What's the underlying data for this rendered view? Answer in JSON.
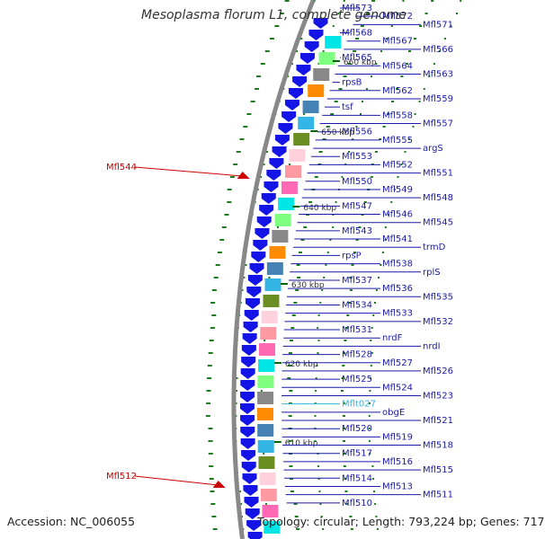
{
  "header": {
    "title": "Mesoplasma florum L1, complete genome"
  },
  "footer": {
    "accession": "Accession: NC_006055",
    "topology": "Topology: circular; Length: 793,224 bp; Genes: 717"
  },
  "colors": {
    "gene_blue": "#1414e6",
    "label_blue": "#1a1aa8",
    "label_red": "#cc0000",
    "trna_cyan": "#33b5e5",
    "backbone": "#888888",
    "gc_green": "#1e7a1e"
  },
  "ruler_ticks": [
    {
      "label": "660 kbp"
    },
    {
      "label": "650 kbp"
    },
    {
      "label": "640 kbp"
    },
    {
      "label": "630 kbp"
    },
    {
      "label": "620 kbp"
    },
    {
      "label": "610 kbp"
    }
  ],
  "gene_labels": {
    "right": [
      "Mfl573",
      "Mfl572",
      "Mfl571",
      "Mfl568",
      "Mfl567",
      "Mfl566",
      "Mfl565",
      "Mfl564",
      "Mfl563",
      "rpsB",
      "Mfl562",
      "Mfl559",
      "tsf",
      "Mfl558",
      "Mfl557",
      "Mfl556",
      "Mfl555",
      "argS",
      "Mfl553",
      "Mfl552",
      "Mfl551",
      "Mfl550",
      "Mfl549",
      "Mfl548",
      "Mfl547",
      "Mfl546",
      "Mfl545",
      "Mfl543",
      "Mfl541",
      "trmD",
      "rpsP",
      "Mfl538",
      "rplS",
      "Mfl537",
      "Mfl536",
      "Mfl535",
      "Mfl534",
      "Mfl533",
      "Mfl532",
      "Mfl531",
      "nrdF",
      "nrdI",
      "Mfl528",
      "Mfl527",
      "Mfl526",
      "Mfl525",
      "Mfl524",
      "Mfl523",
      "Mflt027",
      "obgE",
      "Mfl521",
      "Mfl520",
      "Mfl519",
      "Mfl518",
      "Mfl517",
      "Mfl516",
      "Mfl515",
      "Mfl514",
      "Mfl513",
      "Mfl511",
      "Mfl510"
    ],
    "left": [
      "Mfl544",
      "Mfl512"
    ]
  }
}
